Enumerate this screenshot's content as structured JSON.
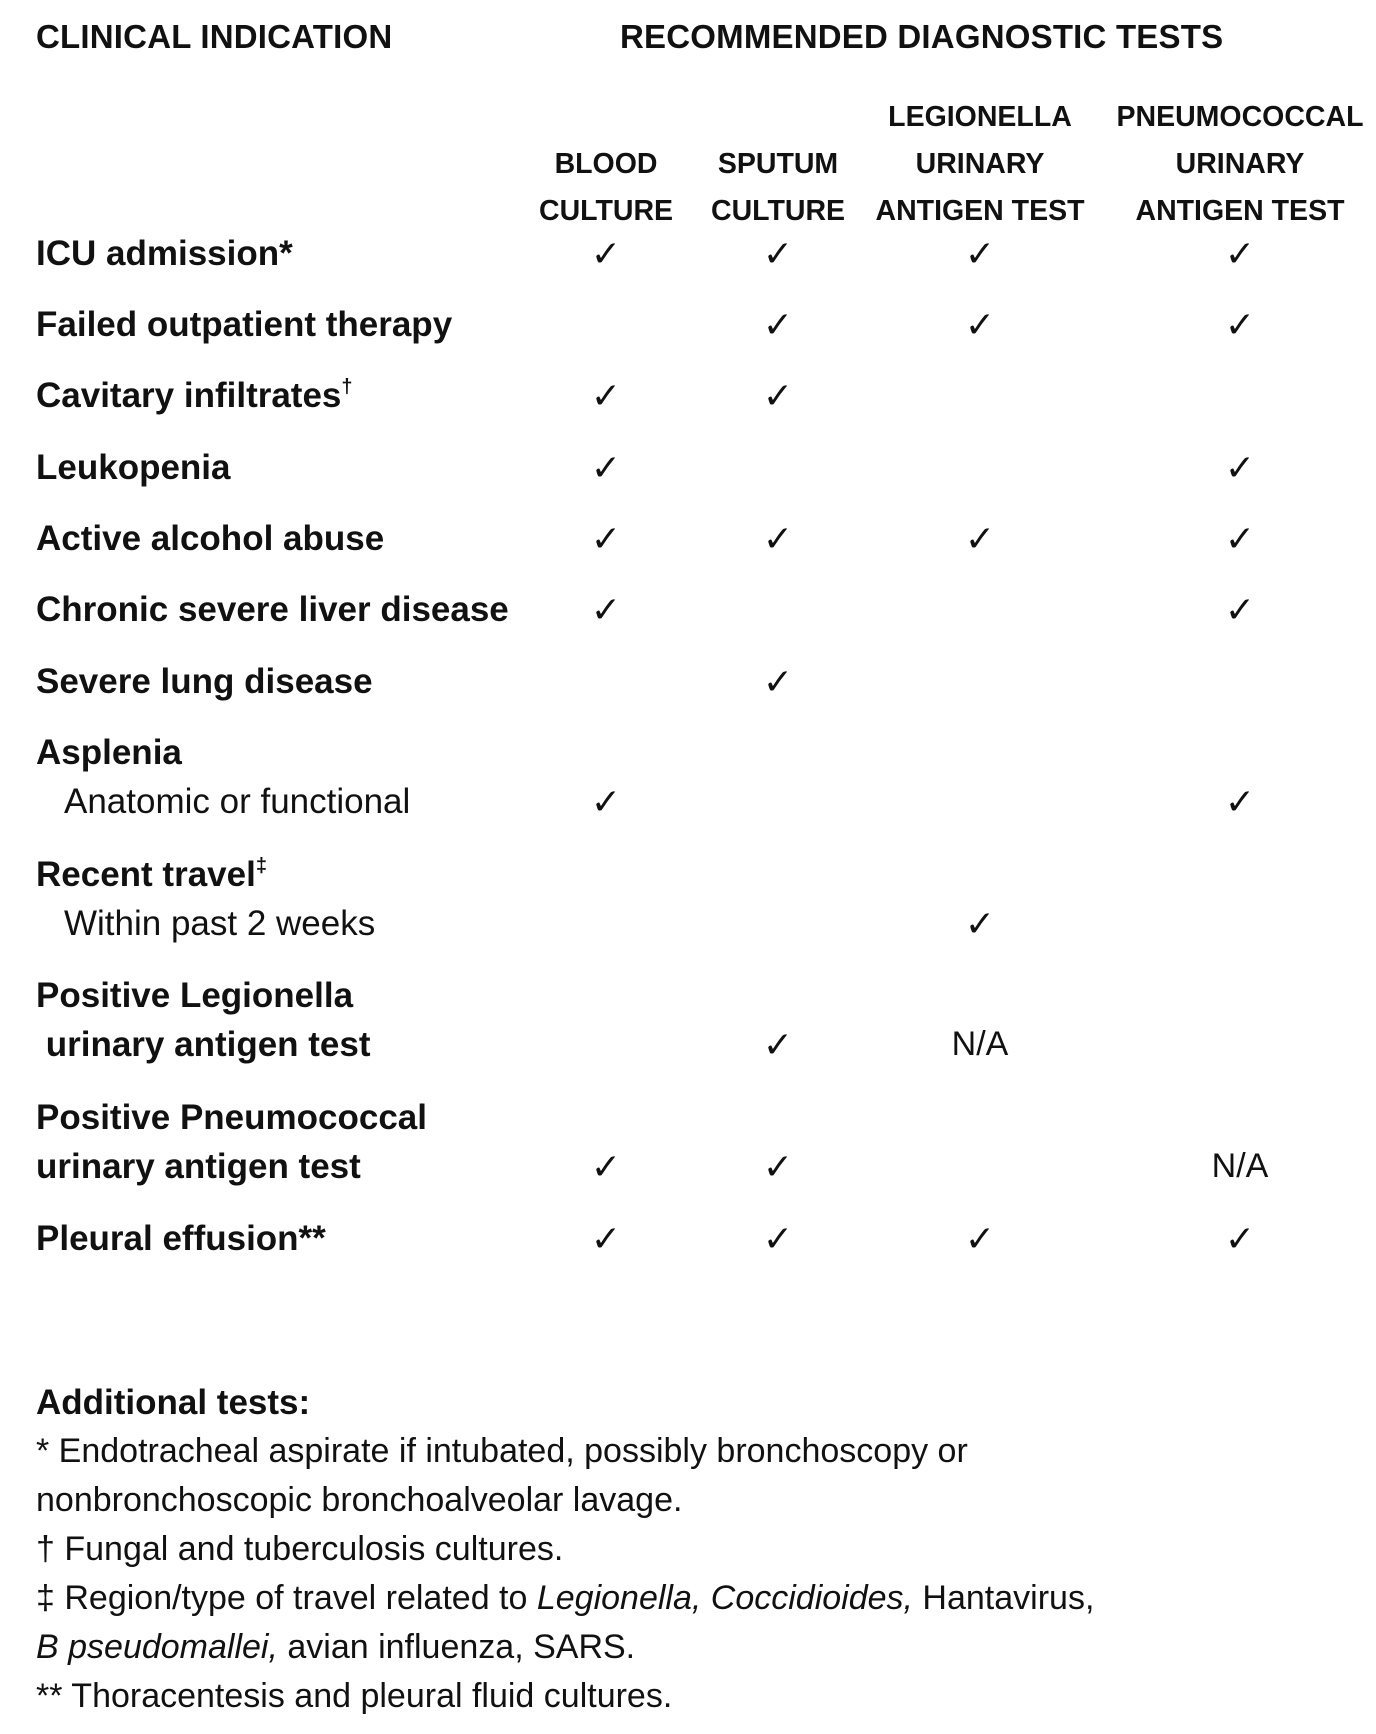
{
  "header": {
    "left": "CLINICAL INDICATION",
    "right": "RECOMMENDED DIAGNOSTIC TESTS"
  },
  "columns": [
    {
      "lines": [
        "BLOOD",
        "CULTURE"
      ]
    },
    {
      "lines": [
        "SPUTUM",
        "CULTURE"
      ]
    },
    {
      "lines": [
        "LEGIONELLA",
        "URINARY",
        "ANTIGEN TEST"
      ]
    },
    {
      "lines": [
        "PNEUMOCOCCAL",
        "URINARY",
        "ANTIGEN TEST"
      ]
    }
  ],
  "check_symbol": "✓",
  "rows": [
    {
      "label": "ICU admission*",
      "sub": "",
      "sup": "",
      "cells": [
        "✓",
        "✓",
        "✓",
        "✓"
      ]
    },
    {
      "label": "Failed outpatient therapy",
      "sub": "",
      "sup": "",
      "cells": [
        "",
        "✓",
        "✓",
        "✓"
      ]
    },
    {
      "label": "Cavitary infiltrates",
      "sub": "",
      "sup": "†",
      "cells": [
        "✓",
        "✓",
        "",
        ""
      ]
    },
    {
      "label": "Leukopenia",
      "sub": "",
      "sup": "",
      "cells": [
        "✓",
        "",
        "",
        "✓"
      ]
    },
    {
      "label": "Active alcohol abuse",
      "sub": "",
      "sup": "",
      "cells": [
        "✓",
        "✓",
        "✓",
        "✓"
      ]
    },
    {
      "label": "Chronic severe liver disease",
      "sub": "",
      "sup": "",
      "cells": [
        "✓",
        "",
        "",
        "✓"
      ]
    },
    {
      "label": "Severe lung disease",
      "sub": "",
      "sup": "",
      "cells": [
        "",
        "✓",
        "",
        ""
      ]
    },
    {
      "label": "Asplenia",
      "sub": "Anatomic or functional",
      "sup": "",
      "cells": [
        "✓",
        "",
        "",
        "✓"
      ]
    },
    {
      "label": "Recent travel",
      "sub": "Within past 2 weeks",
      "sup": "‡",
      "cells": [
        "",
        "",
        "✓",
        ""
      ]
    },
    {
      "label": "Positive Legionella",
      "label2": " urinary antigen test",
      "sub": "",
      "sup": "",
      "cells": [
        "",
        "✓",
        "N/A",
        ""
      ]
    },
    {
      "label": "Positive Pneumococcal",
      "label2": "urinary antigen test",
      "sub": "",
      "sup": "",
      "cells": [
        "✓",
        "✓",
        "",
        "N/A"
      ]
    },
    {
      "label": "Pleural effusion**",
      "sub": "",
      "sup": "",
      "cells": [
        "✓",
        "✓",
        "✓",
        "✓"
      ]
    }
  ],
  "notes": {
    "title": "Additional tests:",
    "lines": [
      [
        {
          "t": "* Endotracheal aspirate if intubated, possibly bronchoscopy or"
        }
      ],
      [
        {
          "t": "nonbronchoscopic bronchoalveolar lavage."
        }
      ],
      [
        {
          "t": "† Fungal and tuberculosis cultures."
        }
      ],
      [
        {
          "t": "‡ Region/type of travel related to "
        },
        {
          "t": "Legionella, Coccidioides,",
          "i": true
        },
        {
          "t": " Hantavirus,"
        }
      ],
      [
        {
          "t": "B pseudomallei,",
          "i": true
        },
        {
          "t": " avian influenza, SARS."
        }
      ],
      [
        {
          "t": "** Thoracentesis and pleural fluid cultures."
        }
      ]
    ]
  }
}
